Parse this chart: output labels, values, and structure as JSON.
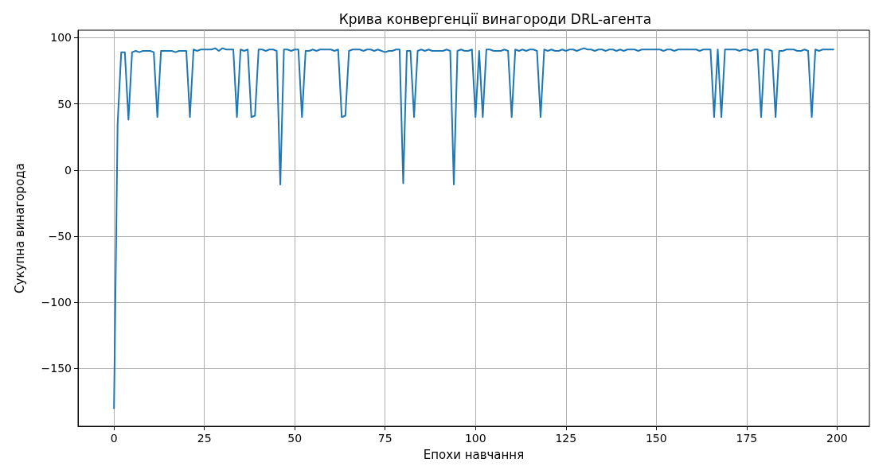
{
  "chart_data": {
    "type": "line",
    "title": "Крива конвергенції винагороди DRL-агента",
    "xlabel": "Епохи навчання",
    "ylabel": "Сукупна винагорода",
    "x": [
      0,
      1,
      2,
      3,
      4,
      5,
      6,
      7,
      8,
      9,
      10,
      11,
      12,
      13,
      14,
      15,
      16,
      17,
      18,
      19,
      20,
      21,
      22,
      23,
      24,
      25,
      26,
      27,
      28,
      29,
      30,
      31,
      32,
      33,
      34,
      35,
      36,
      37,
      38,
      39,
      40,
      41,
      42,
      43,
      44,
      45,
      46,
      47,
      48,
      49,
      50,
      51,
      52,
      53,
      54,
      55,
      56,
      57,
      58,
      59,
      60,
      61,
      62,
      63,
      64,
      65,
      66,
      67,
      68,
      69,
      70,
      71,
      72,
      73,
      74,
      75,
      76,
      77,
      78,
      79,
      80,
      81,
      82,
      83,
      84,
      85,
      86,
      87,
      88,
      89,
      90,
      91,
      92,
      93,
      94,
      95,
      96,
      97,
      98,
      99,
      100,
      101,
      102,
      103,
      104,
      105,
      106,
      107,
      108,
      109,
      110,
      111,
      112,
      113,
      114,
      115,
      116,
      117,
      118,
      119,
      120,
      121,
      122,
      123,
      124,
      125,
      126,
      127,
      128,
      129,
      130,
      131,
      132,
      133,
      134,
      135,
      136,
      137,
      138,
      139,
      140,
      141,
      142,
      143,
      144,
      145,
      146,
      147,
      148,
      149,
      150,
      151,
      152,
      153,
      154,
      155,
      156,
      157,
      158,
      159,
      160,
      161,
      162,
      163,
      164,
      165,
      166,
      167,
      168,
      169,
      170,
      171,
      172,
      173,
      174,
      175,
      176,
      177,
      178,
      179,
      180,
      181,
      182,
      183,
      184,
      185,
      186,
      187,
      188,
      189,
      190,
      191,
      192,
      193,
      194,
      195,
      196,
      197,
      198,
      199
    ],
    "series": [
      {
        "color": "#1f77b4",
        "values": [
          -180,
          35,
          89,
          89,
          38,
          89,
          90,
          89,
          90,
          90,
          90,
          89,
          40,
          90,
          90,
          90,
          90,
          89,
          90,
          90,
          90,
          40,
          91,
          90,
          91,
          91,
          91,
          91,
          92,
          90,
          92,
          91,
          91,
          91,
          40,
          91,
          90,
          91,
          40,
          41,
          91,
          91,
          90,
          91,
          91,
          90,
          -11,
          91,
          91,
          90,
          91,
          91,
          40,
          90,
          90,
          91,
          90,
          91,
          91,
          91,
          91,
          90,
          91,
          40,
          41,
          90,
          91,
          91,
          91,
          90,
          91,
          91,
          90,
          91,
          90,
          89,
          90,
          90,
          91,
          91,
          -10,
          90,
          90,
          40,
          90,
          91,
          90,
          91,
          90,
          90,
          90,
          90,
          91,
          90,
          -11,
          90,
          91,
          90,
          90,
          91,
          40,
          90,
          40,
          91,
          91,
          90,
          90,
          90,
          91,
          90,
          40,
          91,
          90,
          91,
          90,
          91,
          91,
          90,
          40,
          91,
          90,
          91,
          90,
          90,
          91,
          90,
          91,
          91,
          90,
          91,
          92,
          91,
          91,
          90,
          91,
          91,
          90,
          91,
          91,
          90,
          91,
          90,
          91,
          91,
          91,
          90,
          91,
          91,
          91,
          91,
          91,
          91,
          90,
          91,
          91,
          90,
          91,
          91,
          91,
          91,
          91,
          91,
          90,
          91,
          91,
          91,
          40,
          91,
          40,
          91,
          91,
          91,
          91,
          90,
          91,
          91,
          90,
          91,
          91,
          40,
          91,
          91,
          90,
          40,
          90,
          90,
          91,
          91,
          91,
          90,
          90,
          91,
          90,
          40,
          91,
          90,
          91,
          91,
          91,
          91
        ]
      }
    ],
    "xlim": [
      -9.95,
      208.95
    ],
    "xticks": [
      0,
      25,
      50,
      75,
      100,
      125,
      150,
      175,
      200
    ],
    "ylim": [
      -193.6,
      105.6
    ],
    "yticks": [
      -150,
      -100,
      -50,
      0,
      50,
      100
    ],
    "grid": true,
    "marker": "none",
    "line_style": "solid"
  }
}
